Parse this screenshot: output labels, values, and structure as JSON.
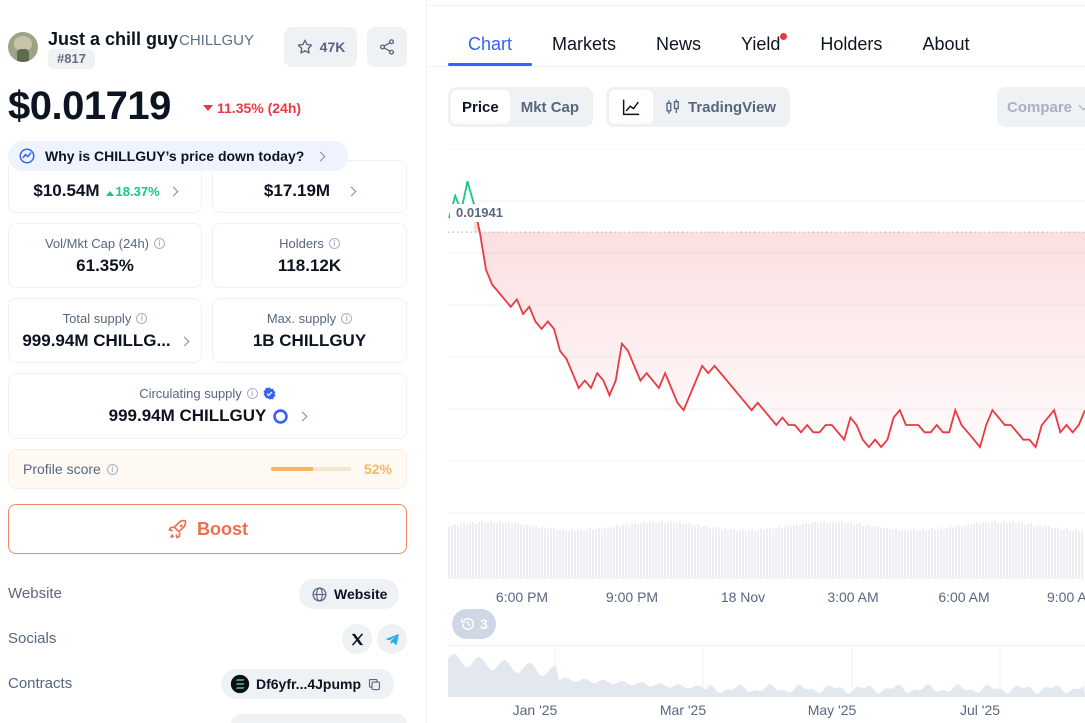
{
  "coin": {
    "name": "Just a chill guy",
    "symbol": "CHILLGUY",
    "rank": "#817",
    "watchlist_count": "47K",
    "price": "$0.01719",
    "change_24h": "11.35% (24h)",
    "change_direction": "down",
    "why_prompt": "Why is CHILLGUY’s price down today?"
  },
  "stats": {
    "market_cap": {
      "value": "$10.54M",
      "change": "18.37%"
    },
    "fdv": {
      "value": "$17.19M"
    },
    "vol_mkt_cap": {
      "label": "Vol/Mkt Cap (24h)",
      "value": "61.35%"
    },
    "holders": {
      "label": "Holders",
      "value": "118.12K"
    },
    "total_supply": {
      "label": "Total supply",
      "value": "999.94M CHILLG..."
    },
    "max_supply": {
      "label": "Max. supply",
      "value": "1B CHILLGUY"
    },
    "circulating_supply": {
      "label": "Circulating supply",
      "value": "999.94M CHILLGUY"
    }
  },
  "profile_score": {
    "label": "Profile score",
    "percent": "52%",
    "fraction": 0.52
  },
  "boost_label": "Boost",
  "links": {
    "website_label": "Website",
    "website_chip": "Website",
    "socials_label": "Socials",
    "contracts_label": "Contracts",
    "contract_address": "Df6yfr...4Jpump"
  },
  "tabs": [
    {
      "label": "Chart",
      "active": true
    },
    {
      "label": "Markets"
    },
    {
      "label": "News"
    },
    {
      "label": "Yield",
      "has_dot": true
    },
    {
      "label": "Holders"
    },
    {
      "label": "About"
    }
  ],
  "chart_controls": {
    "price": "Price",
    "mkt_cap": "Mkt Cap",
    "tradingview": "TradingView",
    "compare": "Compare"
  },
  "history_count": "3",
  "colors": {
    "accent": "#3861fb",
    "down": "#ea3943",
    "up": "#16c784",
    "boost": "#ef6f4d"
  },
  "chart_data": {
    "type": "line",
    "reference_line": 0.01941,
    "reference_label": "0.01941",
    "x_tick_labels": [
      "6:00 PM",
      "9:00 PM",
      "18 Nov",
      "3:00 AM",
      "6:00 AM",
      "9:00 A"
    ],
    "navigator_tick_labels": [
      "Jan '25",
      "Mar '25",
      "May '25",
      "Jul '25"
    ],
    "series": [
      {
        "values": [
          0.0196,
          0.0199,
          0.0197,
          0.0201,
          0.0198,
          0.0194,
          0.0189,
          0.0187,
          0.0186,
          0.0185,
          0.0184,
          0.0185,
          0.0183,
          0.0184,
          0.0182,
          0.0181,
          0.0182,
          0.0181,
          0.0178,
          0.0177,
          0.0175,
          0.0173,
          0.0174,
          0.0173,
          0.0175,
          0.0174,
          0.0172,
          0.0174,
          0.0179,
          0.0178,
          0.0176,
          0.0174,
          0.0175,
          0.0174,
          0.0173,
          0.0175,
          0.0173,
          0.0171,
          0.017,
          0.0172,
          0.0174,
          0.0176,
          0.0175,
          0.0176,
          0.0175,
          0.0174,
          0.0173,
          0.0172,
          0.0171,
          0.017,
          0.0171,
          0.017,
          0.0169,
          0.0168,
          0.0169,
          0.0168,
          0.0168,
          0.0167,
          0.0168,
          0.0167,
          0.0167,
          0.0168,
          0.0168,
          0.0167,
          0.0166,
          0.0169,
          0.0168,
          0.0166,
          0.0165,
          0.0166,
          0.0165,
          0.0166,
          0.0169,
          0.017,
          0.0168,
          0.0168,
          0.0168,
          0.0167,
          0.0167,
          0.0168,
          0.0167,
          0.0167,
          0.017,
          0.0168,
          0.0167,
          0.0166,
          0.0165,
          0.0168,
          0.017,
          0.0169,
          0.0168,
          0.0168,
          0.0167,
          0.0166,
          0.0166,
          0.0165,
          0.0168,
          0.0169,
          0.017,
          0.0167,
          0.0168,
          0.0167,
          0.0168,
          0.017
        ]
      }
    ]
  }
}
